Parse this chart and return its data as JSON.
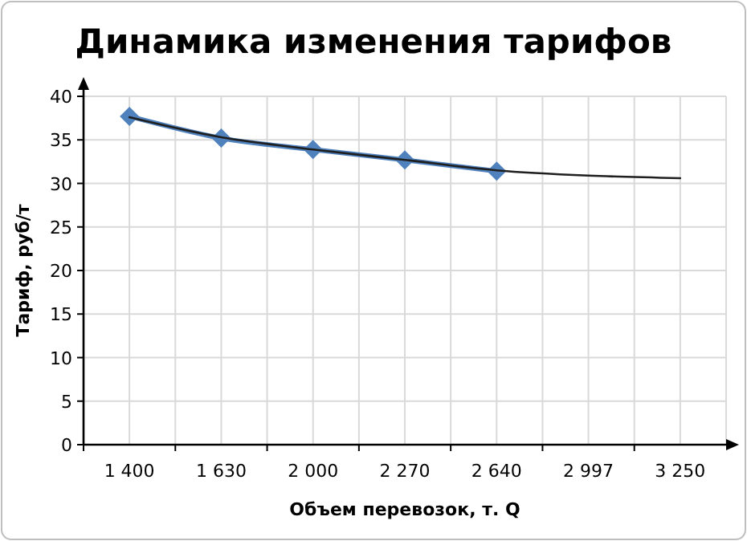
{
  "chart_data": {
    "type": "line",
    "title": "Динамика изменения тарифов",
    "xlabel": "Объем перевозок, т. Q",
    "ylabel": "Тариф, руб/т",
    "categories": [
      "1 400",
      "1 630",
      "2 000",
      "2 270",
      "2 640",
      "2 997",
      "3 250"
    ],
    "series": [
      {
        "color": "#4f81bd",
        "marker": "diamond",
        "values": [
          37.7,
          35.2,
          33.9,
          32.7,
          31.4,
          null,
          null
        ]
      },
      {
        "color": "#1f1f1f",
        "marker": "none",
        "values": [
          37.6,
          35.3,
          33.9,
          32.7,
          31.5,
          30.9,
          30.6
        ]
      }
    ],
    "ylim": [
      0,
      40
    ],
    "yticks": [
      0,
      5,
      10,
      15,
      20,
      25,
      30,
      35,
      40
    ],
    "grid": true
  }
}
